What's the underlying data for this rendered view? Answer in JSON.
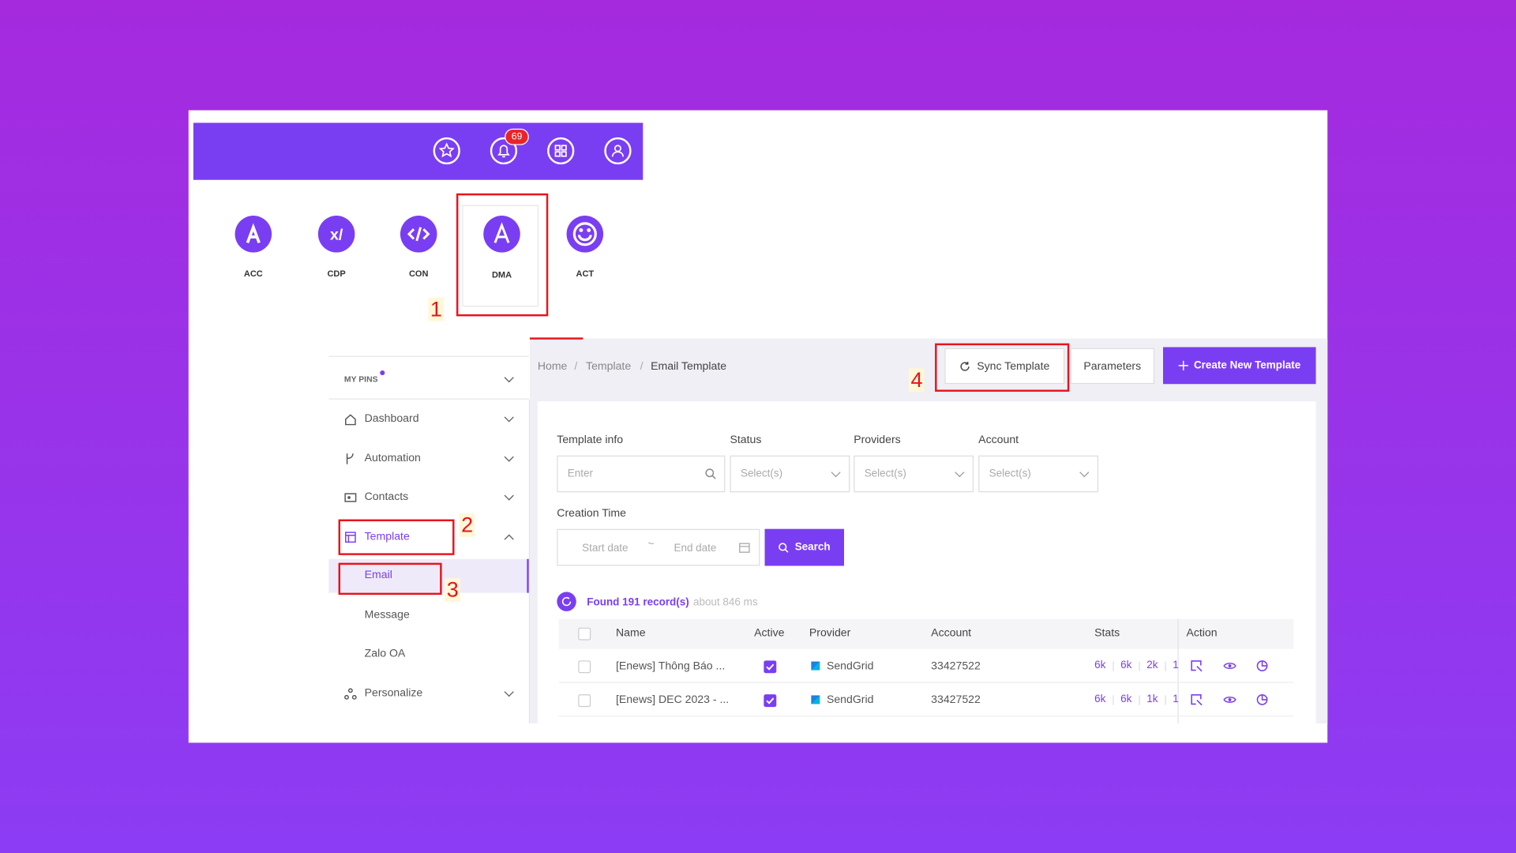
{
  "header": {
    "notification_count": "69"
  },
  "apps": [
    "ACC",
    "CDP",
    "CON",
    "DMA",
    "ACT"
  ],
  "annotations": [
    "1",
    "2",
    "3",
    "4"
  ],
  "sidebar": {
    "my_pins": "MY PINS",
    "items": [
      "Dashboard",
      "Automation",
      "Contacts",
      "Template",
      "Email",
      "Message",
      "Zalo OA",
      "Personalize"
    ]
  },
  "breadcrumb": {
    "items": [
      "Home",
      "Template",
      "Email Template"
    ],
    "separator": "/"
  },
  "buttons": {
    "sync": "Sync Template",
    "parameters": "Parameters",
    "create": "Create New Template"
  },
  "filters": {
    "template_info": "Template info",
    "template_placeholder": "Enter",
    "status": "Status",
    "providers": "Providers",
    "account": "Account",
    "select_placeholder": "Select(s)",
    "creation_time": "Creation Time",
    "start_date": "Start date",
    "range_separator": "~",
    "end_date": "End date",
    "search": "Search"
  },
  "results": {
    "found": "Found 191 record(s)",
    "time": "about 846 ms"
  },
  "table": {
    "columns": [
      "Name",
      "Active",
      "Provider",
      "Account",
      "Stats",
      "Action"
    ],
    "rows": [
      {
        "name": "[Enews] Thông Báo ...",
        "provider": "SendGrid",
        "account": "33427522",
        "stats": [
          "6k",
          "6k",
          "2k",
          "1"
        ]
      },
      {
        "name": "[Enews] DEC 2023 - ...",
        "provider": "SendGrid",
        "account": "33427522",
        "stats": [
          "6k",
          "6k",
          "1k",
          "1"
        ]
      }
    ]
  }
}
